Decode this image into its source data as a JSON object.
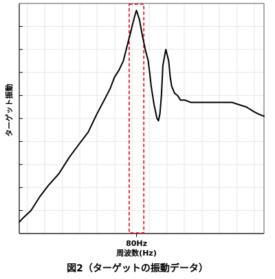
{
  "chart_data": {
    "type": "line",
    "title": "",
    "ylabel": "ターゲット振動",
    "xlabel": "周波数(Hz)",
    "x_tick_label": "80Hz",
    "x_tick_value": 80,
    "xlim": [
      0,
      167
    ],
    "ylim": [
      0,
      1
    ],
    "y_ticks": [
      0.1,
      0.2,
      0.3,
      0.4,
      0.5,
      0.6,
      0.7,
      0.8,
      0.9
    ],
    "grid": true,
    "highlight": {
      "x_from": 75,
      "x_to": 85,
      "color": "#e0202a",
      "style": "dashed"
    },
    "line_color": "#000000",
    "x": [
      0,
      3,
      8,
      14,
      20,
      27,
      34,
      41,
      47,
      53,
      58,
      62,
      65,
      68,
      71,
      73,
      75,
      77,
      79,
      80,
      82,
      84,
      86,
      88,
      89,
      90,
      92,
      94,
      95,
      96,
      97,
      98,
      100,
      102,
      103,
      104,
      106,
      108,
      110,
      113,
      117,
      125,
      135,
      145,
      150,
      155,
      160,
      163,
      167
    ],
    "values": [
      0.05,
      0.07,
      0.1,
      0.16,
      0.21,
      0.26,
      0.33,
      0.39,
      0.44,
      0.52,
      0.58,
      0.63,
      0.68,
      0.71,
      0.75,
      0.8,
      0.85,
      0.9,
      0.95,
      0.97,
      0.93,
      0.86,
      0.8,
      0.75,
      0.7,
      0.64,
      0.56,
      0.5,
      0.49,
      0.52,
      0.6,
      0.73,
      0.8,
      0.75,
      0.68,
      0.64,
      0.61,
      0.6,
      0.58,
      0.58,
      0.57,
      0.57,
      0.57,
      0.57,
      0.56,
      0.55,
      0.53,
      0.52,
      0.51
    ]
  },
  "caption": "図2（ターゲットの振動データ）"
}
